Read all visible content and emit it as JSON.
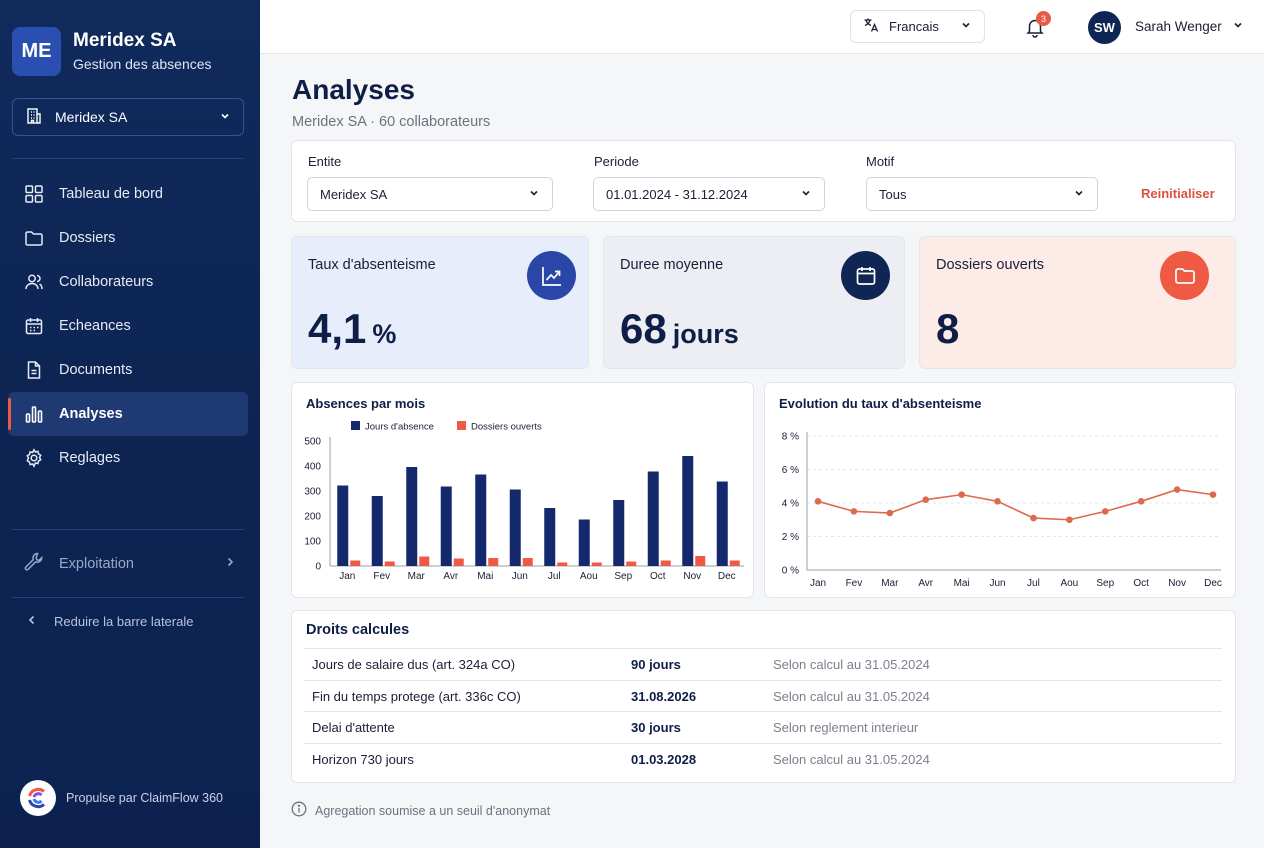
{
  "brand": {
    "initials": "ME",
    "name": "Meridex SA",
    "subtitle": "Gestion des absences"
  },
  "sidebar": {
    "entity": "Meridex SA",
    "items": [
      {
        "label": "Tableau de bord",
        "icon": "grid-icon"
      },
      {
        "label": "Dossiers",
        "icon": "folder-icon"
      },
      {
        "label": "Collaborateurs",
        "icon": "users-icon"
      },
      {
        "label": "Echeances",
        "icon": "calendar-icon"
      },
      {
        "label": "Documents",
        "icon": "document-icon"
      },
      {
        "label": "Analyses",
        "icon": "bar-chart-icon",
        "active": true
      },
      {
        "label": "Reglages",
        "icon": "gear-icon"
      }
    ],
    "exploitation": "Exploitation",
    "collapse": "Reduire la barre laterale",
    "powered_by": "Propulse par ClaimFlow 360"
  },
  "header": {
    "language": "Francais",
    "notifications": "3",
    "user_initials": "SW",
    "user_name": "Sarah Wenger"
  },
  "page": {
    "title": "Analyses",
    "subtitle": "Meridex SA · 60 collaborateurs"
  },
  "filters": {
    "entity_label": "Entite",
    "entity_value": "Meridex SA",
    "period_label": "Periode",
    "period_value": "01.01.2024 - 31.12.2024",
    "reason_label": "Motif",
    "reason_value": "Tous",
    "reset": "Reinitialiser"
  },
  "kpis": [
    {
      "title": "Taux d'absenteisme",
      "value": "4,1",
      "unit": "%",
      "icon": "trend-up-icon",
      "bg": "#e8edfb",
      "icon_bg": "#2a47a8"
    },
    {
      "title": "Duree moyenne",
      "value": "68",
      "unit": "jours",
      "icon": "calendar-icon",
      "bg": "#eceef3",
      "icon_bg": "#0f2553"
    },
    {
      "title": "Dossiers ouverts",
      "value": "8",
      "unit": "",
      "icon": "folder-icon",
      "bg": "#fdebe8",
      "icon_bg": "#ee5a44"
    }
  ],
  "chart_data": [
    {
      "type": "bar",
      "title": "Absences par mois",
      "categories": [
        "Jan",
        "Fev",
        "Mar",
        "Avr",
        "Mai",
        "Jun",
        "Jul",
        "Aou",
        "Sep",
        "Oct",
        "Nov",
        "Dec"
      ],
      "series": [
        {
          "name": "Jours d'absence",
          "color": "#14296b",
          "values": [
            322,
            280,
            396,
            318,
            366,
            306,
            232,
            186,
            264,
            378,
            440,
            338
          ]
        },
        {
          "name": "Dossiers ouverts",
          "color": "#ee5a44",
          "values": [
            22,
            18,
            38,
            30,
            32,
            32,
            14,
            14,
            18,
            22,
            40,
            22
          ]
        }
      ],
      "ylim": [
        0,
        500
      ],
      "yticks": [
        0,
        100,
        200,
        300,
        400,
        500
      ],
      "legend": "top",
      "grid": false
    },
    {
      "type": "line",
      "title": "Evolution du taux d'absenteisme",
      "categories": [
        "Jan",
        "Fev",
        "Mar",
        "Avr",
        "Mai",
        "Jun",
        "Jul",
        "Aou",
        "Sep",
        "Oct",
        "Nov",
        "Dec"
      ],
      "series": [
        {
          "color": "#dd6a4f",
          "values": [
            4.1,
            3.5,
            3.4,
            4.2,
            4.5,
            4.1,
            3.1,
            3.0,
            3.5,
            4.1,
            4.8,
            4.5
          ]
        }
      ],
      "ylim": [
        0,
        8
      ],
      "yticks": [
        "0 %",
        "2 %",
        "4 %",
        "6 %",
        "8 %"
      ],
      "ytick_values": [
        0,
        2,
        4,
        6,
        8
      ],
      "grid": true
    }
  ],
  "rights": {
    "title": "Droits calcules",
    "rows": [
      {
        "label": "Jours de salaire dus (art. 324a CO)",
        "value": "90 jours",
        "note": "Selon calcul au 31.05.2024"
      },
      {
        "label": "Fin du temps protege (art. 336c CO)",
        "value": "31.08.2026",
        "note": "Selon calcul au 31.05.2024"
      },
      {
        "label": "Delai d'attente",
        "value": "30 jours",
        "note": "Selon reglement interieur"
      },
      {
        "label": "Horizon 730 jours",
        "value": "01.03.2028",
        "note": "Selon calcul au 31.05.2024"
      }
    ]
  },
  "footnote": "Agregation soumise a un seuil d'anonymat"
}
